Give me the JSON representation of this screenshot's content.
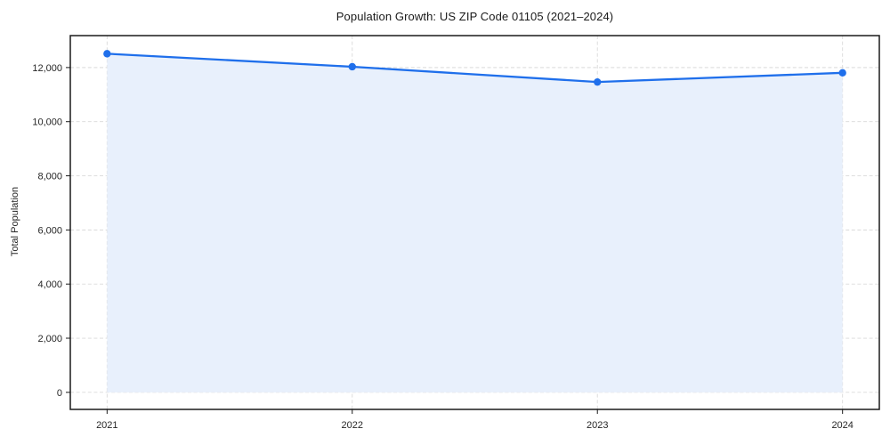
{
  "chart_data": {
    "type": "line",
    "title": "Population Growth: US ZIP Code 01105 (2021–2024)",
    "xlabel": "",
    "ylabel": "Total Population",
    "x": [
      2021,
      2022,
      2023,
      2024
    ],
    "xtick_labels": [
      "2021",
      "2022",
      "2023",
      "2024"
    ],
    "series": [
      {
        "name": "Total Population",
        "values": [
          12510,
          12030,
          11465,
          11805
        ]
      }
    ],
    "yticks": [
      0,
      2000,
      4000,
      6000,
      8000,
      10000,
      12000
    ],
    "ytick_labels": [
      "0",
      "2,000",
      "4,000",
      "6,000",
      "8,000",
      "10,000",
      "12,000"
    ],
    "xlim": [
      2020.85,
      2024.15
    ],
    "ylim": [
      -630,
      13180
    ],
    "grid": true,
    "legend": false,
    "area_fill": true,
    "area_baseline": 0,
    "marker": "circle",
    "colors": {
      "line": "#1f6feb",
      "fill": "#e8f0fc",
      "grid": "#d9d9d9",
      "spine": "#1a1a1a",
      "text": "#262626"
    }
  }
}
